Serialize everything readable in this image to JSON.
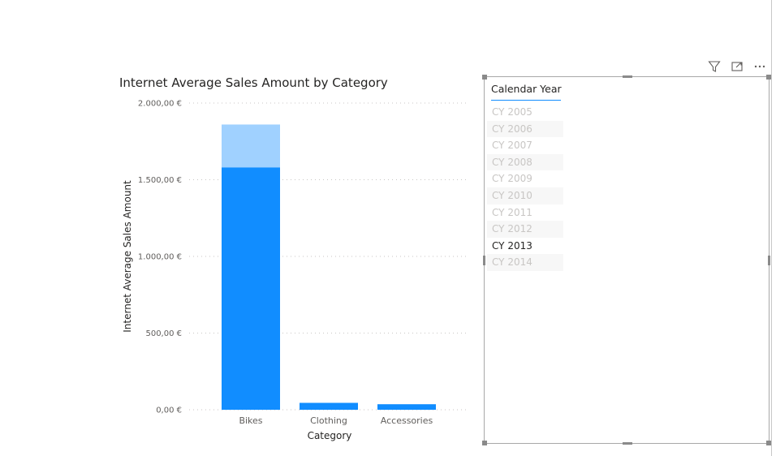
{
  "chart_data": {
    "type": "bar",
    "title": "Internet Average Sales Amount by Category",
    "xlabel": "Category",
    "ylabel": "Internet Average Sales Amount",
    "categories": [
      "Bikes",
      "Clothing",
      "Accessories"
    ],
    "series": [
      {
        "values": [
          1580,
          45,
          36
        ],
        "color": "#118dff"
      },
      {
        "values": [
          1860,
          45,
          36
        ],
        "color": "#a0d1ff"
      }
    ],
    "ylim": [
      0,
      2000
    ],
    "yticks": [
      0,
      500,
      1000,
      1500,
      2000
    ],
    "ytick_labels": [
      "0,00 €",
      "500,00 €",
      "1.000,00 €",
      "1.500,00 €",
      "2.000,00 €"
    ],
    "grid": true,
    "legend": "none"
  },
  "visual_header": {
    "icons": [
      "filter-icon",
      "focus-mode-icon",
      "more-options-icon"
    ]
  },
  "slicer": {
    "title": "Calendar Year",
    "items": [
      {
        "label": "CY 2005",
        "selected": false
      },
      {
        "label": "CY 2006",
        "selected": false
      },
      {
        "label": "CY 2007",
        "selected": false
      },
      {
        "label": "CY 2008",
        "selected": false
      },
      {
        "label": "CY 2009",
        "selected": false
      },
      {
        "label": "CY 2010",
        "selected": false
      },
      {
        "label": "CY 2011",
        "selected": false
      },
      {
        "label": "CY 2012",
        "selected": false
      },
      {
        "label": "CY 2013",
        "selected": true
      },
      {
        "label": "CY 2014",
        "selected": false
      }
    ]
  }
}
